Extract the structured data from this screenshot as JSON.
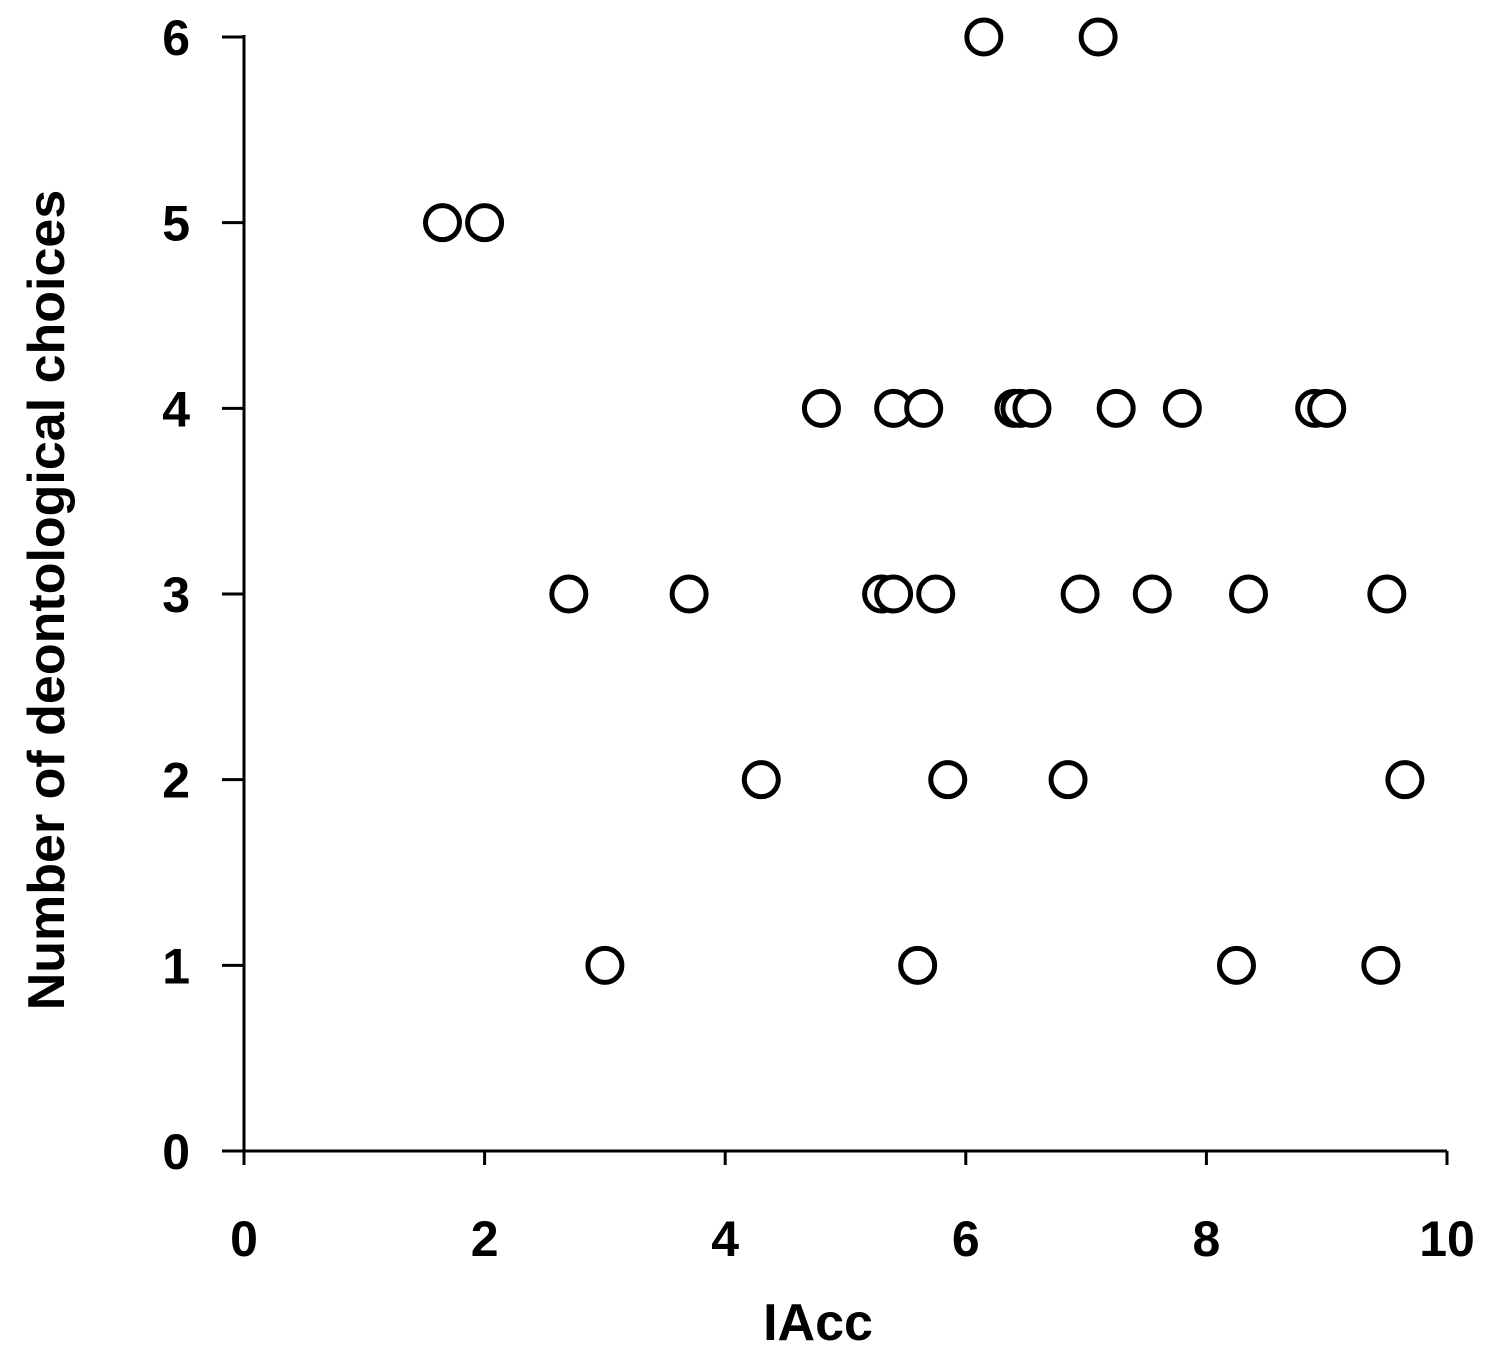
{
  "chart_data": {
    "type": "scatter",
    "title": "",
    "xlabel": "IAcc",
    "ylabel": "Number of deontological choices",
    "xlim": [
      0,
      10
    ],
    "ylim": [
      0,
      6
    ],
    "xticks": [
      0,
      2,
      4,
      6,
      8,
      10
    ],
    "yticks": [
      0,
      1,
      2,
      3,
      4,
      5,
      6
    ],
    "grid": false,
    "marker": "open-circle",
    "colors": {
      "marker_edge": "#000000",
      "marker_fill": "#ffffff",
      "axis": "#000000"
    },
    "points": [
      {
        "x": 6.15,
        "y": 6
      },
      {
        "x": 7.1,
        "y": 6
      },
      {
        "x": 1.65,
        "y": 5
      },
      {
        "x": 2.0,
        "y": 5
      },
      {
        "x": 4.8,
        "y": 4
      },
      {
        "x": 5.4,
        "y": 4
      },
      {
        "x": 5.65,
        "y": 4
      },
      {
        "x": 6.4,
        "y": 4
      },
      {
        "x": 6.45,
        "y": 4
      },
      {
        "x": 6.55,
        "y": 4
      },
      {
        "x": 7.25,
        "y": 4
      },
      {
        "x": 7.8,
        "y": 4
      },
      {
        "x": 8.9,
        "y": 4
      },
      {
        "x": 9.0,
        "y": 4
      },
      {
        "x": 2.7,
        "y": 3
      },
      {
        "x": 3.7,
        "y": 3
      },
      {
        "x": 5.3,
        "y": 3
      },
      {
        "x": 5.4,
        "y": 3
      },
      {
        "x": 5.75,
        "y": 3
      },
      {
        "x": 6.95,
        "y": 3
      },
      {
        "x": 7.55,
        "y": 3
      },
      {
        "x": 8.35,
        "y": 3
      },
      {
        "x": 9.5,
        "y": 3
      },
      {
        "x": 4.3,
        "y": 2
      },
      {
        "x": 5.85,
        "y": 2
      },
      {
        "x": 6.85,
        "y": 2
      },
      {
        "x": 9.65,
        "y": 2
      },
      {
        "x": 3.0,
        "y": 1
      },
      {
        "x": 5.6,
        "y": 1
      },
      {
        "x": 8.25,
        "y": 1
      },
      {
        "x": 9.45,
        "y": 1
      }
    ]
  }
}
